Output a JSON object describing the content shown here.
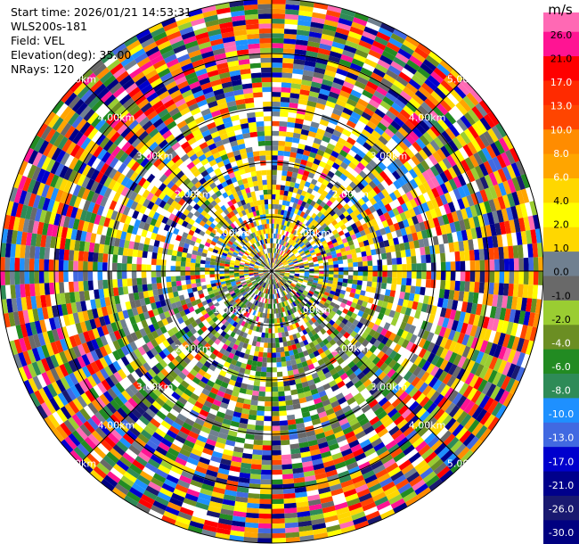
{
  "header": {
    "start_time": "Start time: 2026/01/21 14:53:31",
    "instrument": "WLS200s-181",
    "field": "Field: VEL",
    "elevation": "Elevation(deg): 35.00",
    "nrays": "NRays: 120"
  },
  "chart_data": {
    "type": "ppi",
    "field": "VEL",
    "units": "m/s",
    "elevation_deg": 35.0,
    "n_rays": 120,
    "range_rings_km": [
      1.0,
      2.0,
      3.0,
      4.0,
      5.0
    ],
    "ring_labels": [
      "1.00km",
      "2.00km",
      "3.00km",
      "4.00km",
      "5.00km"
    ],
    "max_range_km": 5.0,
    "colorbar": {
      "label": "m/s",
      "ticks": [
        "26.0",
        "21.0",
        "17.0",
        "13.0",
        "10.0",
        "8.0",
        "6.0",
        "4.0",
        "2.0",
        "1.0",
        "0.0",
        "-1.0",
        "-2.0",
        "-4.0",
        "-6.0",
        "-8.0",
        "-10.0",
        "-13.0",
        "-17.0",
        "-21.0",
        "-26.0",
        "-30.0"
      ],
      "colors": [
        "#ff69b4",
        "#ff1493",
        "#ff0000",
        "#ff2a00",
        "#ff4500",
        "#ff8c00",
        "#ffa500",
        "#ffd700",
        "#ffff00",
        "#ffd700",
        "#708090",
        "#696969",
        "#9acd32",
        "#6b8e23",
        "#228b22",
        "#2e8b57",
        "#1e90ff",
        "#4169e1",
        "#0000cd",
        "#00008b",
        "#191970",
        "#000080"
      ]
    }
  }
}
